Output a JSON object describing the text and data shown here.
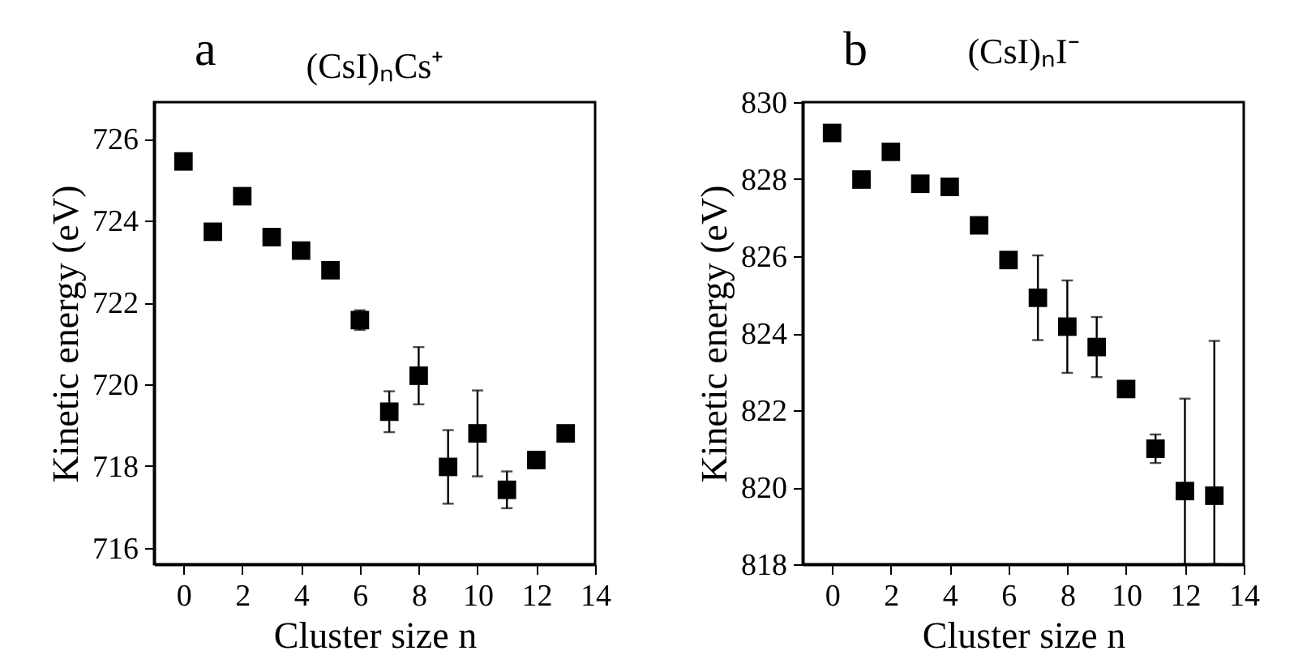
{
  "chart_data": [
    {
      "type": "scatter",
      "title": "(CsI)ₙCs⁺",
      "annotations": [
        "a"
      ],
      "xlabel": "Cluster size n",
      "ylabel": "Kinetic energy (eV)",
      "marker": "square",
      "x": [
        0,
        1,
        2,
        3,
        4,
        5,
        6,
        7,
        8,
        9,
        10,
        11,
        12,
        13
      ],
      "series": [
        {
          "color": "#000000",
          "values": [
            725.45,
            723.73,
            724.6,
            723.6,
            723.27,
            722.79,
            721.57,
            719.33,
            720.21,
            717.98,
            718.8,
            717.42,
            718.15,
            718.8
          ],
          "errors": [
            null,
            null,
            null,
            null,
            null,
            null,
            0.24,
            0.5,
            0.7,
            0.9,
            1.05,
            0.45,
            0.2,
            null
          ]
        }
      ],
      "xlim": [
        -1,
        14
      ],
      "xticks": [
        0,
        2,
        4,
        6,
        8,
        10,
        12,
        14
      ],
      "ylim": [
        715.6,
        726.9
      ],
      "yticks": [
        716,
        718,
        720,
        722,
        724,
        726
      ]
    },
    {
      "type": "scatter",
      "title": "(CsI)ₙI⁻",
      "annotations": [
        "b"
      ],
      "xlabel": "Cluster size n",
      "ylabel": "Kinetic energy (eV)",
      "marker": "square",
      "x": [
        0,
        1,
        2,
        3,
        4,
        5,
        6,
        7,
        8,
        9,
        10,
        11,
        12,
        13
      ],
      "series": [
        {
          "color": "#000000",
          "values": [
            829.2,
            827.99,
            828.71,
            827.88,
            827.8,
            826.8,
            825.9,
            824.92,
            824.17,
            823.64,
            822.55,
            821.0,
            819.9,
            819.78
          ],
          "errors": [
            null,
            null,
            0.2,
            null,
            null,
            null,
            null,
            1.1,
            1.2,
            0.78,
            null,
            0.37,
            [
              818,
              822.3
            ],
            [
              818,
              823.8
            ]
          ]
        }
      ],
      "xlim": [
        -1,
        14
      ],
      "xticks": [
        0,
        2,
        4,
        6,
        8,
        10,
        12,
        14
      ],
      "ylim": [
        818,
        830
      ],
      "yticks": [
        818,
        820,
        822,
        824,
        826,
        828,
        830
      ]
    }
  ]
}
